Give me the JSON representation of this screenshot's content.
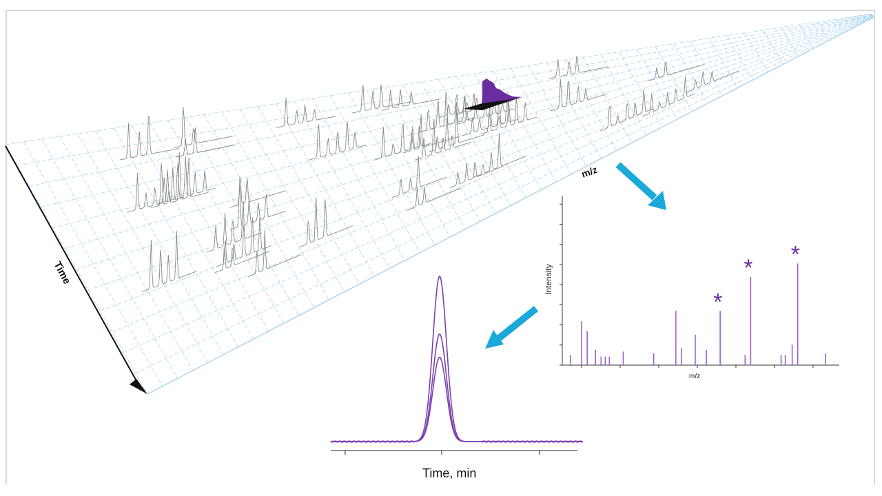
{
  "figure": {
    "time_axis_label": "Time",
    "mz_axis_label": "m/z",
    "colors": {
      "grid": "#a8d4ee",
      "peaks": "#8a8a8a",
      "highlight": "#6a2d9f",
      "arrow": "#1aa9d8",
      "axis": "#111111"
    }
  },
  "spectrum": {
    "ylabel": "Intensity",
    "xlabel": "m/z",
    "marker": "*",
    "bars": [
      {
        "x": 0.03,
        "h": 0.06
      },
      {
        "x": 0.07,
        "h": 0.26
      },
      {
        "x": 0.09,
        "h": 0.2
      },
      {
        "x": 0.12,
        "h": 0.09
      },
      {
        "x": 0.14,
        "h": 0.05
      },
      {
        "x": 0.155,
        "h": 0.05
      },
      {
        "x": 0.17,
        "h": 0.05
      },
      {
        "x": 0.22,
        "h": 0.08
      },
      {
        "x": 0.33,
        "h": 0.07
      },
      {
        "x": 0.41,
        "h": 0.32,
        "color": "#a066c8"
      },
      {
        "x": 0.43,
        "h": 0.1
      },
      {
        "x": 0.48,
        "h": 0.18
      },
      {
        "x": 0.52,
        "h": 0.09
      },
      {
        "x": 0.57,
        "h": 0.32,
        "star": true
      },
      {
        "x": 0.66,
        "h": 0.06
      },
      {
        "x": 0.68,
        "h": 0.52,
        "star": true
      },
      {
        "x": 0.79,
        "h": 0.06
      },
      {
        "x": 0.805,
        "h": 0.06
      },
      {
        "x": 0.83,
        "h": 0.12
      },
      {
        "x": 0.85,
        "h": 0.6,
        "star": true
      },
      {
        "x": 0.95,
        "h": 0.07
      }
    ]
  },
  "chromatogram": {
    "xlabel": "Time, min",
    "traces": [
      1.0,
      0.65,
      0.51
    ]
  }
}
